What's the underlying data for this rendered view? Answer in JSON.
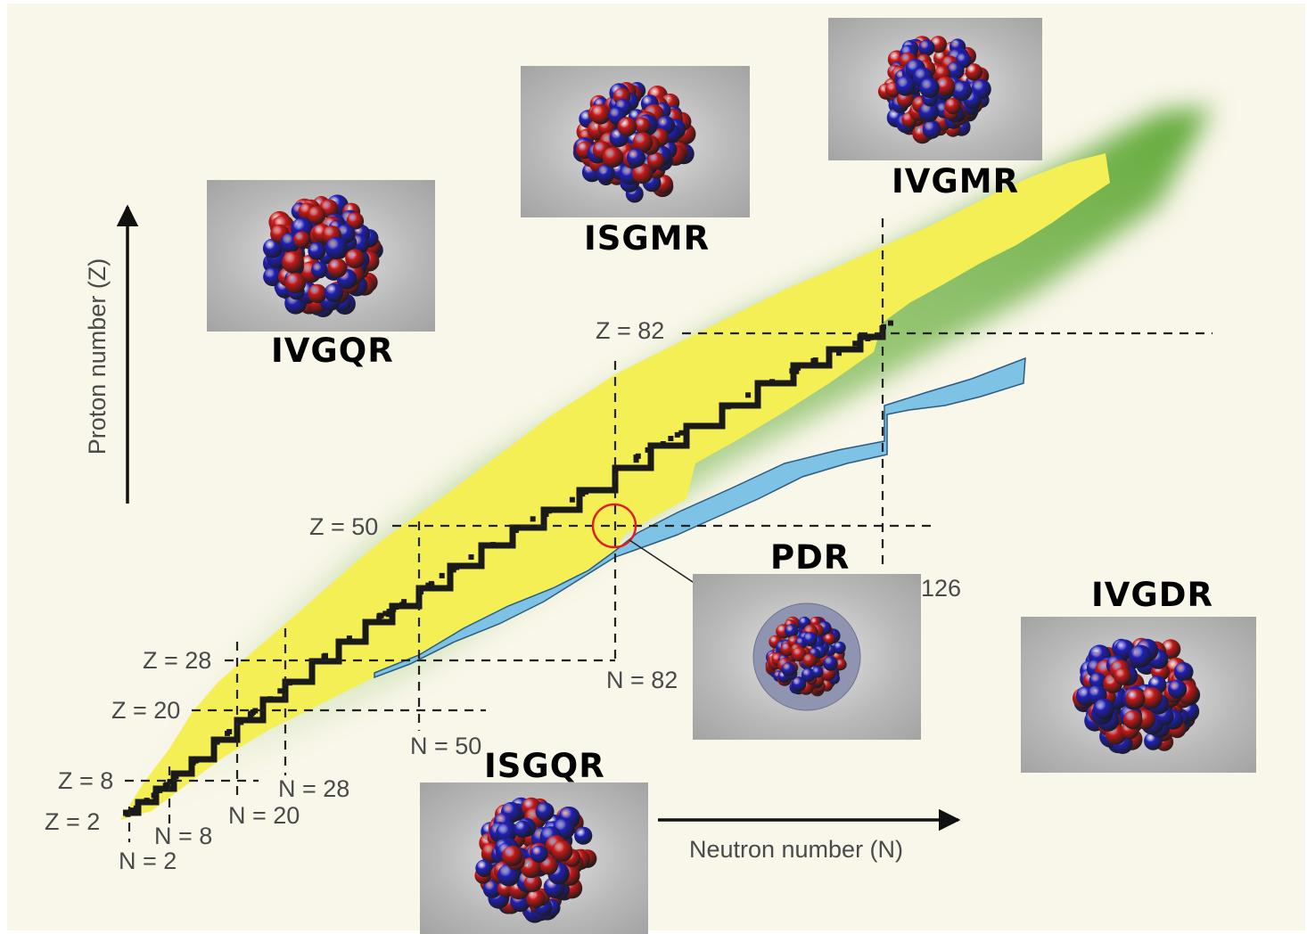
{
  "axes": {
    "y_label": "Proton number (Z)",
    "x_label": "Neutron number (N)"
  },
  "magic_numbers": {
    "z_labels": [
      "Z = 2",
      "Z = 8",
      "Z = 20",
      "Z = 28",
      "Z = 50",
      "Z = 82"
    ],
    "n_labels": [
      "N = 2",
      "N = 8",
      "N = 20",
      "N = 28",
      "N = 50",
      "N = 82",
      "126"
    ]
  },
  "modes": {
    "ivgqr": "IVGQR",
    "isgmr": "ISGMR",
    "ivgmr": "IVGMR",
    "pdr": "PDR",
    "ivgdr": "IVGDR",
    "isgqr": "ISGQR"
  },
  "colors": {
    "background": "#f9f6ea",
    "known_nuclei": "#f4ef55",
    "stable_nuclei": "#1a1a1a",
    "neutron_rich_region": "#6db33f",
    "r_process_path": "#7ec3e6",
    "highlight_circle": "#e02020",
    "proton_sphere": "#c81818",
    "neutron_sphere": "#1f1fb8"
  }
}
